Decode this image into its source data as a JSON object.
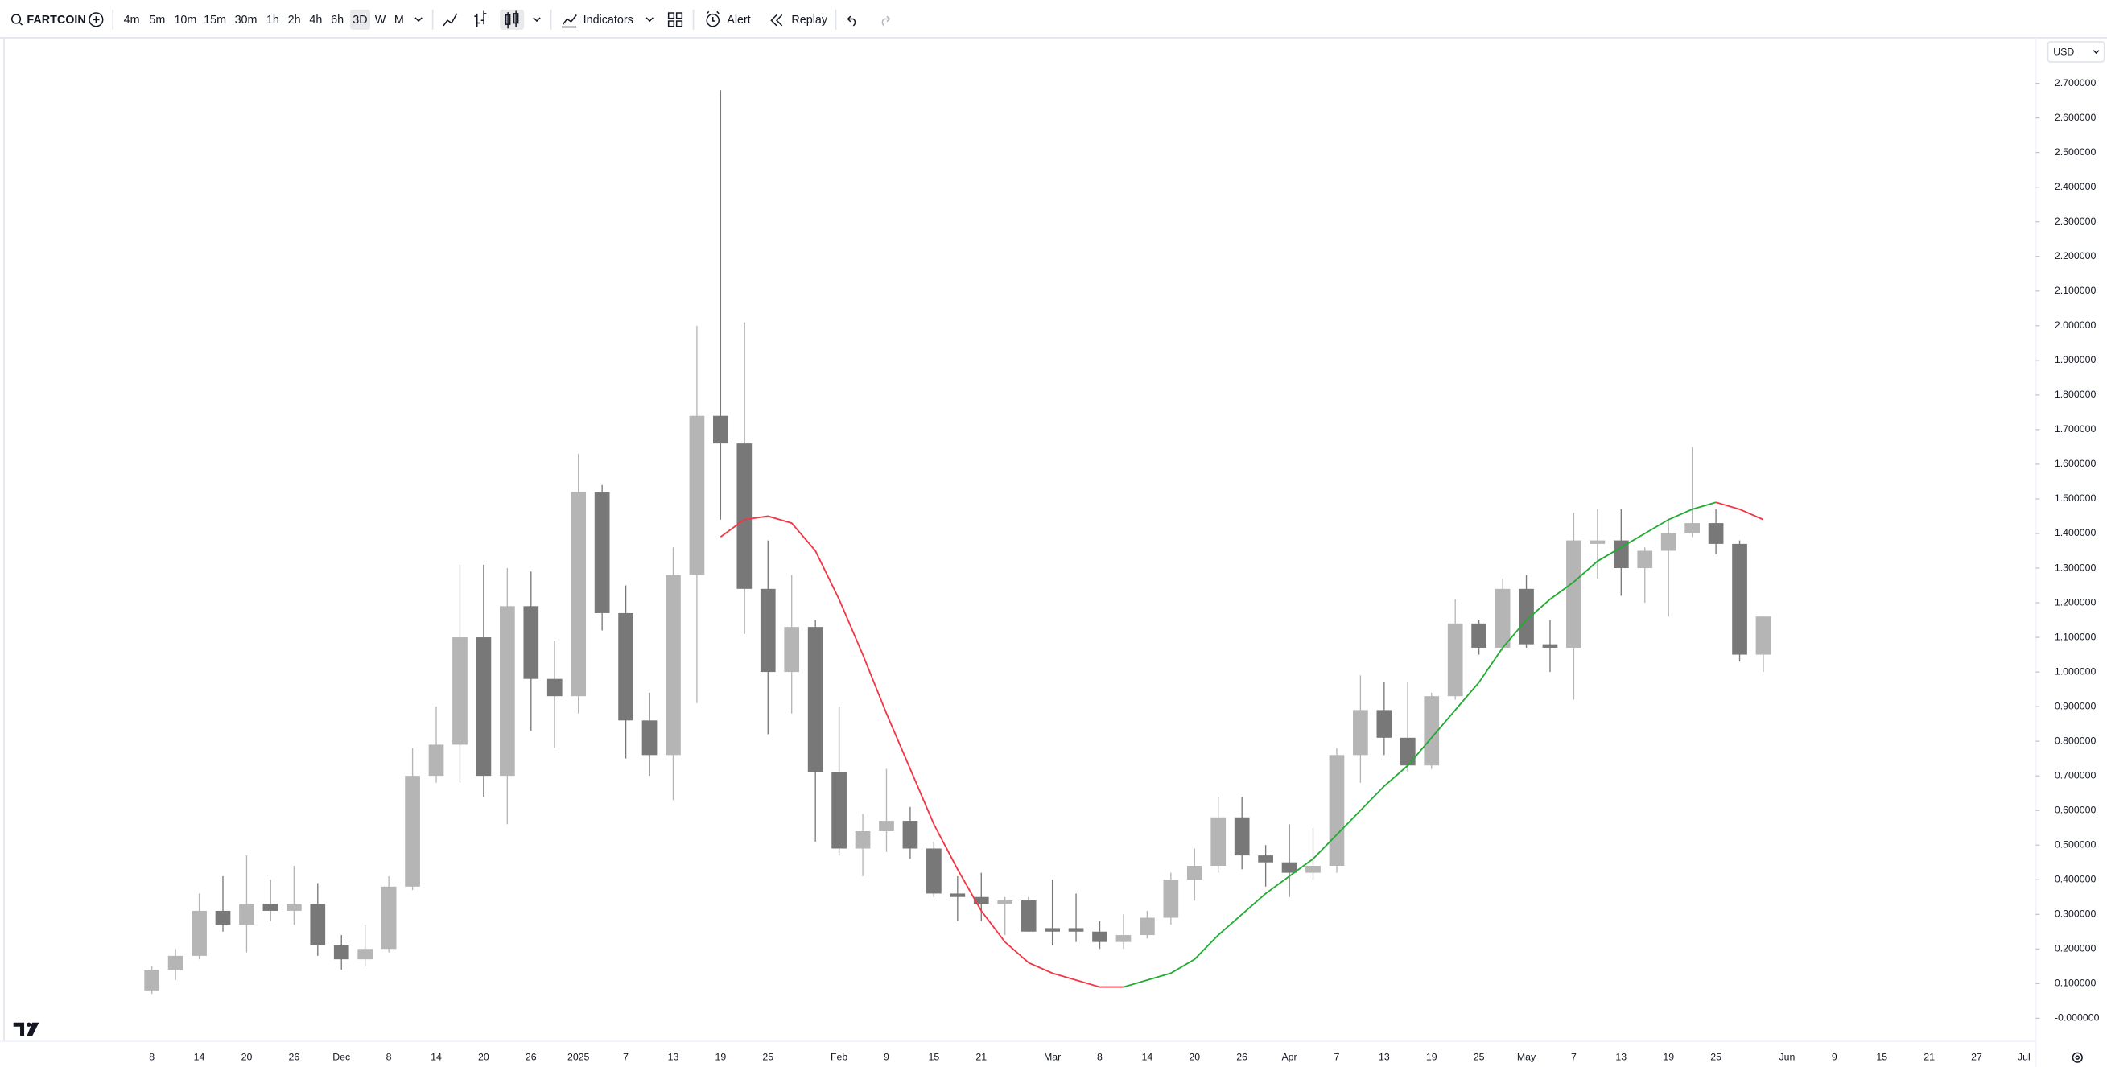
{
  "toolbar": {
    "symbol": "FARTCOIN",
    "intervals": [
      "4m",
      "5m",
      "10m",
      "15m",
      "30m",
      "1h",
      "2h",
      "4h",
      "6h",
      "3D",
      "W",
      "M"
    ],
    "active_interval": "3D",
    "indicators": "Indicators",
    "alert": "Alert",
    "replay": "Replay"
  },
  "chart_data": {
    "type": "candlestick",
    "currency": "USD",
    "categories": [
      "8",
      null,
      "14",
      null,
      "20",
      null,
      "26",
      null,
      "Dec",
      null,
      "8",
      null,
      "14",
      null,
      "20",
      null,
      "26",
      null,
      "2025",
      null,
      "7",
      null,
      "13",
      null,
      "19",
      null,
      "25",
      null,
      null,
      "Feb",
      null,
      "9",
      null,
      "15",
      null,
      "21",
      null,
      null,
      "Mar",
      null,
      "8",
      null,
      "14",
      null,
      "20",
      null,
      "26",
      null,
      "Apr",
      null,
      "7",
      null,
      "13",
      null,
      "19",
      null,
      "25",
      null,
      "May",
      null,
      "7",
      null,
      "13",
      null,
      "19",
      null,
      "25",
      null,
      null,
      "Jun",
      null,
      "9",
      null,
      "15",
      null,
      "21",
      null,
      "27",
      null,
      "Jul"
    ],
    "open": [
      0.08,
      0.14,
      0.18,
      0.31,
      0.27,
      0.33,
      0.31,
      0.33,
      0.21,
      0.17,
      0.2,
      0.38,
      0.7,
      0.79,
      1.1,
      0.7,
      1.19,
      0.98,
      0.93,
      1.52,
      1.17,
      0.86,
      0.76,
      1.28,
      1.74,
      1.66,
      1.24,
      1.0,
      1.13,
      0.71,
      0.49,
      0.54,
      0.57,
      0.49,
      0.36,
      0.35,
      0.33,
      0.34,
      0.26,
      0.26,
      0.25,
      0.22,
      0.24,
      0.29,
      0.4,
      0.44,
      0.58,
      0.47,
      0.45,
      0.42,
      0.44,
      0.76,
      0.89,
      0.81,
      0.73,
      0.93,
      1.14,
      1.07,
      1.24,
      1.08,
      1.07,
      1.37,
      1.38,
      1.3,
      1.35,
      1.4,
      1.43,
      1.37,
      1.05,
      null,
      null,
      null,
      null,
      null,
      null,
      null,
      null,
      null,
      null,
      null
    ],
    "high": [
      0.15,
      0.2,
      0.36,
      0.41,
      0.47,
      0.4,
      0.44,
      0.39,
      0.24,
      0.27,
      0.41,
      0.78,
      0.9,
      1.31,
      1.31,
      1.3,
      1.29,
      1.09,
      1.63,
      1.54,
      1.25,
      0.94,
      1.36,
      2.0,
      2.68,
      2.01,
      1.38,
      1.28,
      1.15,
      0.9,
      0.59,
      0.72,
      0.61,
      0.51,
      0.41,
      0.42,
      0.35,
      0.35,
      0.4,
      0.36,
      0.28,
      0.3,
      0.31,
      0.42,
      0.49,
      0.64,
      0.64,
      0.5,
      0.56,
      0.55,
      0.78,
      0.99,
      0.97,
      0.97,
      0.94,
      1.21,
      1.15,
      1.27,
      1.28,
      1.15,
      1.46,
      1.47,
      1.47,
      1.36,
      1.44,
      1.65,
      1.47,
      1.38,
      1.16,
      null,
      null,
      null,
      null,
      null,
      null,
      null,
      null,
      null,
      null,
      null
    ],
    "low": [
      0.07,
      0.11,
      0.17,
      0.25,
      0.19,
      0.28,
      0.27,
      0.18,
      0.14,
      0.15,
      0.19,
      0.37,
      0.68,
      0.68,
      0.64,
      0.56,
      0.83,
      0.78,
      0.88,
      1.12,
      0.75,
      0.7,
      0.63,
      0.91,
      1.44,
      1.11,
      0.82,
      0.88,
      0.51,
      0.47,
      0.41,
      0.48,
      0.46,
      0.35,
      0.28,
      0.28,
      0.24,
      0.25,
      0.21,
      0.22,
      0.2,
      0.2,
      0.23,
      0.27,
      0.34,
      0.42,
      0.43,
      0.38,
      0.35,
      0.4,
      0.42,
      0.68,
      0.76,
      0.71,
      0.72,
      0.92,
      1.05,
      1.06,
      1.07,
      1.0,
      0.92,
      1.27,
      1.22,
      1.2,
      1.16,
      1.39,
      1.34,
      1.03,
      1.0,
      null,
      null,
      null,
      null,
      null,
      null,
      null,
      null,
      null,
      null,
      null
    ],
    "close": [
      0.14,
      0.18,
      0.31,
      0.27,
      0.33,
      0.31,
      0.33,
      0.21,
      0.17,
      0.2,
      0.38,
      0.7,
      0.79,
      1.1,
      0.7,
      1.19,
      0.98,
      0.93,
      1.52,
      1.17,
      0.86,
      0.76,
      1.28,
      1.74,
      1.66,
      1.24,
      1.0,
      1.13,
      0.71,
      0.49,
      0.54,
      0.57,
      0.49,
      0.36,
      0.35,
      0.33,
      0.34,
      0.25,
      0.25,
      0.25,
      0.22,
      0.24,
      0.29,
      0.4,
      0.44,
      0.58,
      0.47,
      0.45,
      0.42,
      0.44,
      0.76,
      0.89,
      0.81,
      0.73,
      0.93,
      1.14,
      1.07,
      1.24,
      1.08,
      1.07,
      1.38,
      1.38,
      1.3,
      1.35,
      1.4,
      1.43,
      1.37,
      1.05,
      1.16,
      null,
      null,
      null,
      null,
      null,
      null,
      null,
      null,
      null,
      null,
      null
    ],
    "up_color": "#b5b5b5",
    "down_color": "#787878",
    "lines": [
      {
        "color": "#f23645",
        "values": [
          null,
          null,
          null,
          null,
          null,
          null,
          null,
          null,
          null,
          null,
          null,
          null,
          null,
          null,
          null,
          null,
          null,
          null,
          null,
          null,
          null,
          null,
          null,
          null,
          1.39,
          1.44,
          1.45,
          1.43,
          1.35,
          1.21,
          1.05,
          0.88,
          0.72,
          0.56,
          0.43,
          0.31,
          0.22,
          0.16,
          0.13,
          0.11,
          0.09,
          0.09,
          null,
          null,
          null,
          null,
          null,
          null,
          null,
          null,
          null,
          null,
          null,
          null,
          null,
          null,
          null,
          null,
          null,
          null,
          null,
          null,
          null,
          null,
          null,
          null,
          1.49,
          1.47,
          1.44,
          null,
          null,
          null,
          null,
          null,
          null,
          null,
          null,
          null,
          null,
          null
        ]
      },
      {
        "color": "#22ab33",
        "values": [
          null,
          null,
          null,
          null,
          null,
          null,
          null,
          null,
          null,
          null,
          null,
          null,
          null,
          null,
          null,
          null,
          null,
          null,
          null,
          null,
          null,
          null,
          null,
          null,
          null,
          null,
          null,
          null,
          null,
          null,
          null,
          null,
          null,
          null,
          null,
          null,
          null,
          null,
          null,
          null,
          null,
          0.09,
          0.11,
          0.13,
          0.17,
          0.24,
          0.3,
          0.36,
          0.41,
          0.46,
          0.53,
          0.6,
          0.67,
          0.73,
          0.81,
          0.89,
          0.97,
          1.07,
          1.15,
          1.21,
          1.26,
          1.32,
          1.36,
          1.4,
          1.44,
          1.47,
          1.49,
          null,
          null,
          null,
          null,
          null,
          null,
          null,
          null,
          null,
          null,
          null,
          null,
          null
        ]
      }
    ],
    "ylim": [
      -0.067,
      2.832
    ],
    "yticks": [
      {
        "value": 0,
        "label": "-0.000000"
      },
      {
        "value": 0.1,
        "label": "0.100000"
      },
      {
        "value": 0.2,
        "label": "0.200000"
      },
      {
        "value": 0.3,
        "label": "0.300000"
      },
      {
        "value": 0.4,
        "label": "0.400000"
      },
      {
        "value": 0.5,
        "label": "0.500000"
      },
      {
        "value": 0.6,
        "label": "0.600000"
      },
      {
        "value": 0.7,
        "label": "0.700000"
      },
      {
        "value": 0.8,
        "label": "0.800000"
      },
      {
        "value": 0.9,
        "label": "0.900000"
      },
      {
        "value": 1.0,
        "label": "1.000000"
      },
      {
        "value": 1.1,
        "label": "1.100000"
      },
      {
        "value": 1.2,
        "label": "1.200000"
      },
      {
        "value": 1.3,
        "label": "1.300000"
      },
      {
        "value": 1.4,
        "label": "1.400000"
      },
      {
        "value": 1.5,
        "label": "1.500000"
      },
      {
        "value": 1.6,
        "label": "1.600000"
      },
      {
        "value": 1.7,
        "label": "1.700000"
      },
      {
        "value": 1.8,
        "label": "1.800000"
      },
      {
        "value": 1.9,
        "label": "1.900000"
      },
      {
        "value": 2.0,
        "label": "2.000000"
      },
      {
        "value": 2.1,
        "label": "2.100000"
      },
      {
        "value": 2.2,
        "label": "2.200000"
      },
      {
        "value": 2.3,
        "label": "2.300000"
      },
      {
        "value": 2.4,
        "label": "2.400000"
      },
      {
        "value": 2.5,
        "label": "2.500000"
      },
      {
        "value": 2.6,
        "label": "2.600000"
      },
      {
        "value": 2.7,
        "label": "2.700000"
      }
    ],
    "grid": false
  }
}
